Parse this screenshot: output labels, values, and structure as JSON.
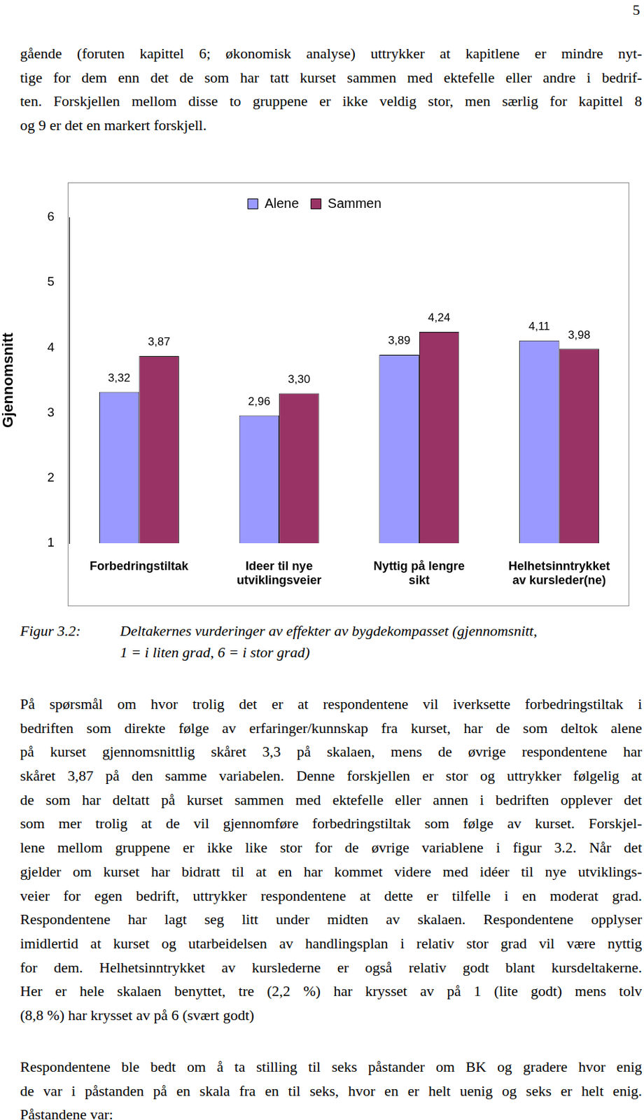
{
  "page_number": "5",
  "text_before": [
    "gående (foruten kapittel 6; økonomisk analyse) uttrykker at kapitlene er mindre nyt-",
    "tige for dem enn det de som har tatt kurset sammen med ektefelle eller andre i bedrif-",
    "ten. Forskjellen mellom disse to gruppene er ikke veldig stor, men særlig for kapittel 8",
    "og 9 er det en markert forskjell."
  ],
  "chart_data": {
    "type": "bar",
    "categories": [
      [
        "Forbedringstiltak"
      ],
      [
        "Ideer til nye",
        "utviklingsveier"
      ],
      [
        "Nyttig på lengre",
        "sikt"
      ],
      [
        "Helhetsinntrykket",
        "av kursleder(ne)"
      ]
    ],
    "series": [
      {
        "name": "Alene",
        "color": "#9999ff",
        "values": [
          3.32,
          2.96,
          3.89,
          4.11
        ],
        "value_labels": [
          "3,32",
          "2,96",
          "3,89",
          "4,11"
        ]
      },
      {
        "name": "Sammen",
        "color": "#993366",
        "values": [
          3.87,
          3.3,
          4.24,
          3.98
        ],
        "value_labels": [
          "3,87",
          "3,30",
          "4,24",
          "3,98"
        ]
      }
    ],
    "y_label": "Gjennomsnitt",
    "ylim": [
      1,
      6
    ],
    "yticks": [
      1,
      2,
      3,
      4,
      5,
      6
    ],
    "grid": false,
    "legend": "top",
    "data_labels": true
  },
  "caption": {
    "label": "Figur 3.2:",
    "lines": [
      "Deltakernes vurderinger av effekter av bygdekompasset (gjennomsnitt,",
      "1 = i liten grad, 6 = i stor grad)"
    ]
  },
  "text_after": [
    [
      "På spørsmål om hvor trolig det er at respondentene vil iverksette forbedringstiltak i",
      "bedriften som direkte følge av erfaringer/kunnskap fra kurset, har de som deltok alene",
      "på kurset gjennomsnittlig skåret 3,3 på skalaen, mens de øvrige respondentene har",
      "skåret 3,87 på den samme variabelen. Denne forskjellen er stor og uttrykker følgelig at",
      "de som har deltatt på kurset sammen med ektefelle eller annen i bedriften opplever det",
      "som mer trolig at de vil gjennomføre forbedringstiltak som følge av kurset. Forskjel-",
      "lene mellom gruppene er ikke like stor for de øvrige variablene i figur 3.2. Når det",
      "gjelder om kurset har bidratt til at en har kommet videre med idéer til nye utviklings-",
      "veier for egen bedrift, uttrykker respondentene at dette er tilfelle i en moderat grad.",
      "Respondentene har lagt seg litt under midten av skalaen. Respondentene opplyser",
      "imidlertid at kurset og utarbeidelsen av handlingsplan i relativ stor grad vil være nyttig",
      "for dem. Helhetsinntrykket av kurslederne er også relativ godt blant kursdeltakerne.",
      "Her er hele skalaen benyttet, tre (2,2 %) har krysset av på 1 (lite godt) mens tolv",
      "(8,8 %) har krysset av på 6 (svært godt)"
    ],
    [
      "Respondentene ble bedt om å ta stilling til seks påstander om BK og gradere hvor enig",
      "de var i påstanden på en skala fra en til seks, hvor en er helt uenig og seks er helt enig.",
      "Påstandene var:"
    ]
  ]
}
